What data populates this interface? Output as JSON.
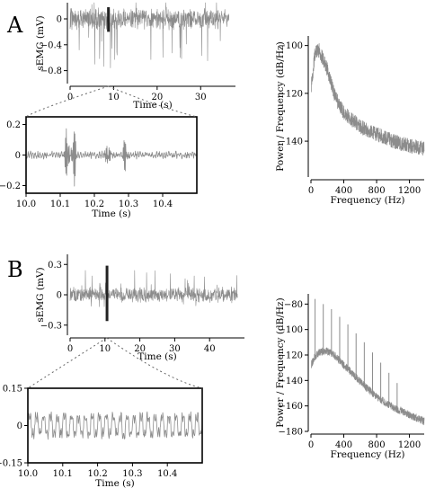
{
  "panel_labels": [
    "A",
    "B"
  ],
  "chart_data": [
    {
      "id": "A-raw",
      "type": "line",
      "title": "",
      "xlabel": "Time (s)",
      "ylabel": "sEMG (mV)",
      "xlim": [
        0,
        38
      ],
      "ylim": [
        -1.0,
        0.25
      ],
      "xticks": [
        0,
        10,
        20,
        30
      ],
      "yticks": [
        0,
        -0.4,
        -0.8
      ],
      "series": [
        {
          "duration_s": 36.5,
          "amplitude_mV": 0.15,
          "spike_mV": -0.8,
          "color": "#8c8c8c"
        }
      ],
      "highlight_window_s": [
        8.5,
        9.1
      ],
      "grid": false
    },
    {
      "id": "A-zoom",
      "type": "line",
      "title": "",
      "xlabel": "Time (s)",
      "ylabel": "",
      "xlim": [
        10.0,
        10.5
      ],
      "ylim": [
        -0.25,
        0.25
      ],
      "xticks": [
        10.0,
        10.1,
        10.2,
        10.3,
        10.4
      ],
      "yticks": [
        0.2,
        0,
        -0.2
      ],
      "series": [
        {
          "burst_times_s": [
            10.12,
            10.14,
            10.24,
            10.29
          ],
          "color": "#8c8c8c"
        }
      ],
      "grid": false
    },
    {
      "id": "A-psd",
      "type": "line",
      "title": "",
      "xlabel": "Frequency (Hz)",
      "ylabel": "Power / Frequency (dB/Hz)",
      "xlim": [
        0,
        1380
      ],
      "ylim": [
        -155,
        -96
      ],
      "xticks": [
        0,
        400,
        800,
        1200
      ],
      "yticks": [
        -100,
        -120,
        -140
      ],
      "series": [
        {
          "x": [
            0,
            50,
            100,
            150,
            200,
            300,
            400,
            500,
            600,
            800,
            1000,
            1200,
            1380
          ],
          "y": [
            -118,
            -103,
            -102,
            -106,
            -110,
            -122,
            -128,
            -131,
            -134,
            -137,
            -140,
            -142,
            -143
          ],
          "color": "#8c8c8c"
        }
      ],
      "grid": false
    },
    {
      "id": "B-raw",
      "type": "line",
      "title": "",
      "xlabel": "Time (s)",
      "ylabel": "sEMG (mV)",
      "xlim": [
        0,
        50
      ],
      "ylim": [
        -0.4,
        0.4
      ],
      "xticks": [
        0,
        10,
        20,
        30,
        40
      ],
      "yticks": [
        0.3,
        0,
        -0.3
      ],
      "series": [
        {
          "duration_s": 48,
          "amplitude_mV": 0.07,
          "spike_mV": 0.25,
          "color": "#8c8c8c"
        }
      ],
      "highlight_window_s": [
        10.2,
        10.8
      ],
      "grid": false
    },
    {
      "id": "B-zoom",
      "type": "line",
      "title": "",
      "xlabel": "Time (s)",
      "ylabel": "",
      "xlim": [
        10.0,
        10.5
      ],
      "ylim": [
        -0.15,
        0.15
      ],
      "xticks": [
        10.0,
        10.1,
        10.2,
        10.3,
        10.4
      ],
      "yticks": [
        0.15,
        0,
        -0.15
      ],
      "series": [
        {
          "oscillation_hz": 50,
          "amplitude_mV": 0.05,
          "color": "#8c8c8c"
        }
      ],
      "grid": false
    },
    {
      "id": "B-psd",
      "type": "line",
      "title": "",
      "xlabel": "Frequency (Hz)",
      "ylabel": "Power / Frequency (dB/Hz)",
      "xlim": [
        0,
        1380
      ],
      "ylim": [
        -180,
        -72
      ],
      "xticks": [
        0,
        400,
        800,
        1200
      ],
      "yticks": [
        -80,
        -100,
        -120,
        -140,
        -160,
        -180
      ],
      "series": [
        {
          "x": [
            0,
            50,
            100,
            150,
            200,
            300,
            400,
            500,
            600,
            800,
            1000,
            1200,
            1380
          ],
          "y": [
            -128,
            -121,
            -118,
            -117,
            -117,
            -121,
            -128,
            -134,
            -141,
            -153,
            -161,
            -167,
            -172
          ],
          "harmonics_hz": [
            50,
            150,
            250,
            350,
            450,
            550,
            650,
            750,
            850,
            950,
            1050
          ],
          "harmonic_peak_db": [
            -76,
            -80,
            -84,
            -90,
            -96,
            -103,
            -110,
            -118,
            -126,
            -134,
            -142
          ],
          "color": "#8c8c8c"
        }
      ],
      "grid": false
    }
  ]
}
